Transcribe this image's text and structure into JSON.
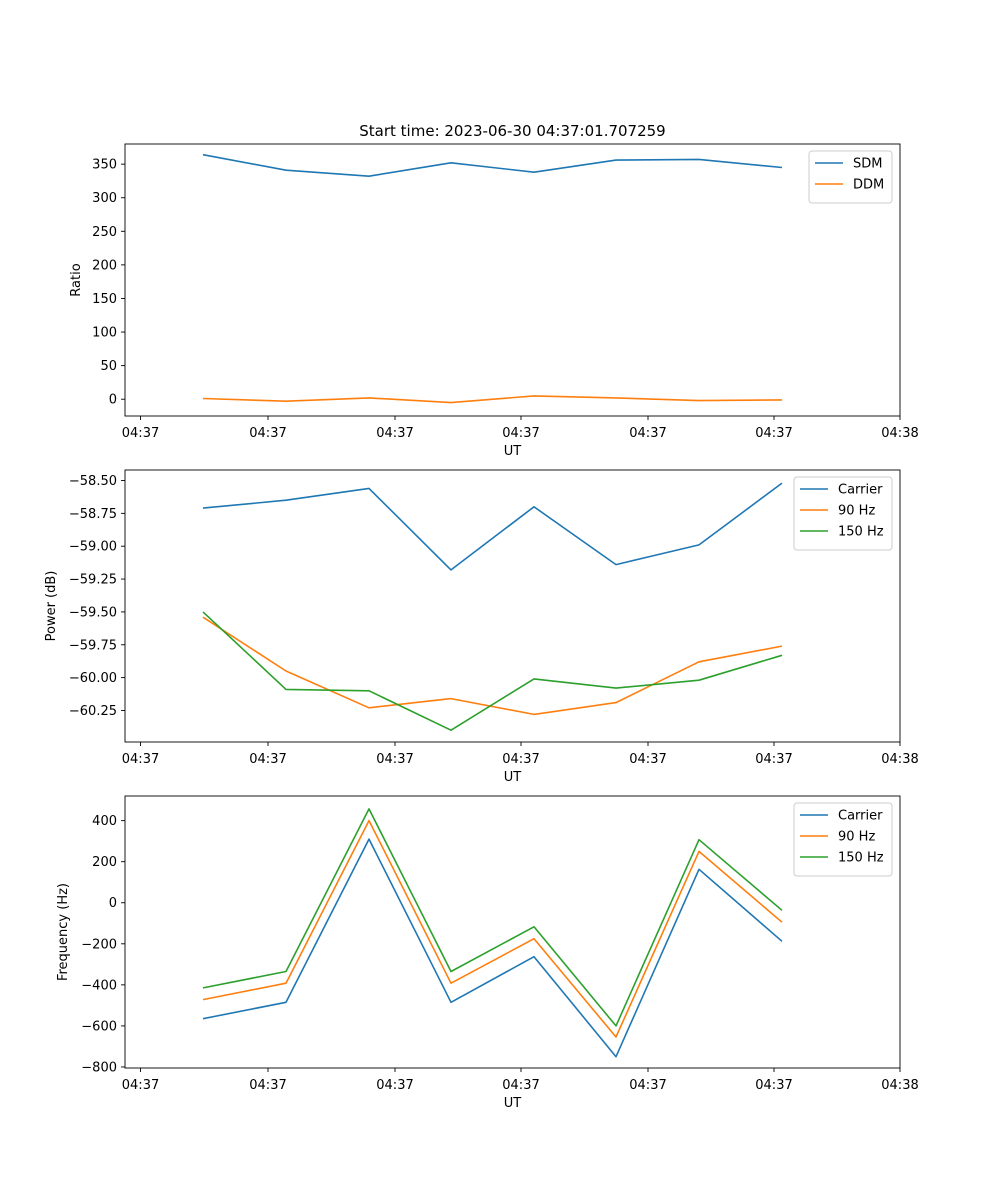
{
  "figure": {
    "title": "Start time: 2023-06-30 04:37:01.707259"
  },
  "colors": {
    "blue": "#1f77b4",
    "orange": "#ff7f0e",
    "green": "#2ca02c"
  },
  "chart_data": [
    {
      "type": "line",
      "title": "Start time: 2023-06-30 04:37:01.707259",
      "xlabel": "UT",
      "ylabel": "Ratio",
      "xticks": [
        "04:37",
        "04:37",
        "04:37",
        "04:37",
        "04:37",
        "04:37",
        "04:38"
      ],
      "ylim": [
        -25,
        380
      ],
      "yticks": [
        0,
        50,
        100,
        150,
        200,
        250,
        300,
        350
      ],
      "legend": "top-right",
      "series": [
        {
          "name": "SDM",
          "color": "#1f77b4",
          "values": [
            364,
            341,
            332,
            352,
            338,
            356,
            357,
            345
          ]
        },
        {
          "name": "DDM",
          "color": "#ff7f0e",
          "values": [
            1,
            -3,
            2,
            -5,
            5,
            2,
            -2,
            -1
          ]
        }
      ]
    },
    {
      "type": "line",
      "title": "",
      "xlabel": "UT",
      "ylabel": "Power (dB)",
      "xticks": [
        "04:37",
        "04:37",
        "04:37",
        "04:37",
        "04:37",
        "04:37",
        "04:38"
      ],
      "ylim": [
        -60.49,
        -58.42
      ],
      "yticks": [
        -58.5,
        -58.75,
        -59.0,
        -59.25,
        -59.5,
        -59.75,
        -60.0,
        -60.25
      ],
      "yticklabels": [
        "−58.50",
        "−58.75",
        "−59.00",
        "−59.25",
        "−59.50",
        "−59.75",
        "−60.00",
        "−60.25"
      ],
      "legend": "top-right",
      "series": [
        {
          "name": "Carrier",
          "color": "#1f77b4",
          "values": [
            -58.71,
            -58.65,
            -58.56,
            -59.18,
            -58.7,
            -59.14,
            -58.99,
            -58.52
          ]
        },
        {
          "name": "90 Hz",
          "color": "#ff7f0e",
          "values": [
            -59.54,
            -59.95,
            -60.23,
            -60.16,
            -60.28,
            -60.19,
            -59.88,
            -59.76
          ]
        },
        {
          "name": "150 Hz",
          "color": "#2ca02c",
          "values": [
            -59.5,
            -60.09,
            -60.1,
            -60.4,
            -60.01,
            -60.08,
            -60.02,
            -59.83
          ]
        }
      ]
    },
    {
      "type": "line",
      "title": "",
      "xlabel": "UT",
      "ylabel": "Frequency (Hz)",
      "xticks": [
        "04:37",
        "04:37",
        "04:37",
        "04:37",
        "04:37",
        "04:37",
        "04:38"
      ],
      "ylim": [
        -805,
        520
      ],
      "yticks": [
        400,
        200,
        0,
        -200,
        -400,
        -600,
        -800
      ],
      "yticklabels": [
        "400",
        "200",
        "0",
        "−200",
        "−400",
        "−600",
        "−800"
      ],
      "legend": "top-right",
      "series": [
        {
          "name": "Carrier",
          "color": "#1f77b4",
          "values": [
            -565,
            -485,
            310,
            -485,
            -263,
            -750,
            163,
            -188
          ]
        },
        {
          "name": "90 Hz",
          "color": "#ff7f0e",
          "values": [
            -472,
            -392,
            400,
            -392,
            -175,
            -654,
            250,
            -95
          ]
        },
        {
          "name": "150 Hz",
          "color": "#2ca02c",
          "values": [
            -415,
            -335,
            457,
            -335,
            -117,
            -600,
            307,
            -37
          ]
        }
      ]
    }
  ]
}
